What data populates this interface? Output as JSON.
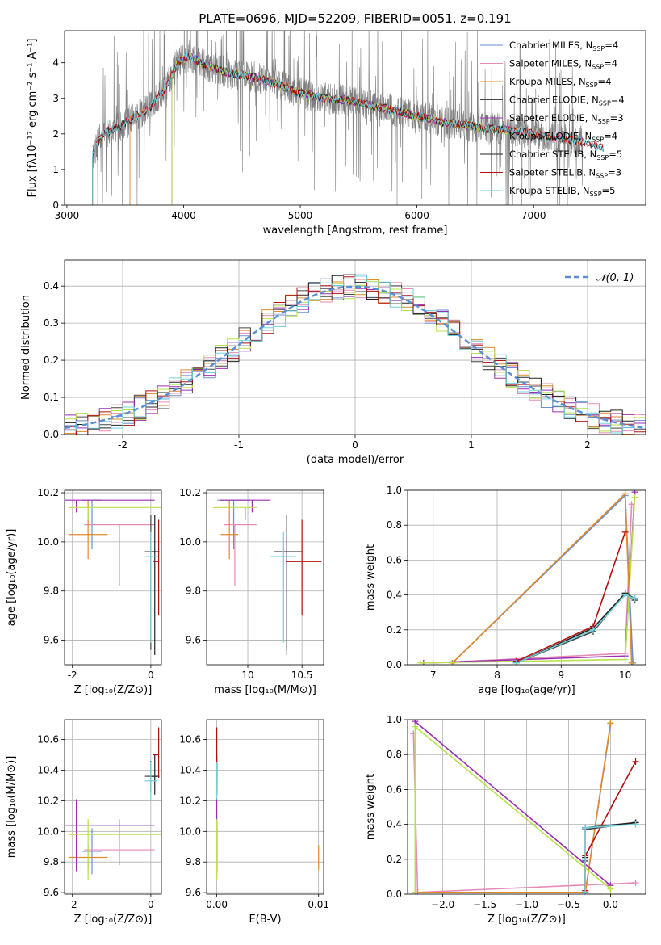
{
  "figure": {
    "title": "PLATE=0696, MJD=52209, FIBERID=0051, z=0.191"
  },
  "chart_data": [
    {
      "id": "spectrum",
      "type": "line",
      "xlabel": "wavelength [Angstrom, rest frame]",
      "ylabel": "Flux [fλ10⁻¹⁷ erg cm⁻² s⁻¹ A⁻¹]",
      "xlim": [
        2980,
        7960
      ],
      "ylim": [
        0,
        4.9
      ],
      "xticks": [
        3000,
        4000,
        5000,
        6000,
        7000
      ],
      "yticks": [
        0,
        1,
        2,
        3,
        4
      ],
      "grid": false,
      "legend_position": "top-right",
      "data_noise_range": [
        3220,
        7420
      ],
      "continuum": [
        {
          "x": 3220,
          "y": 1.4
        },
        {
          "x": 3300,
          "y": 2.0
        },
        {
          "x": 3450,
          "y": 2.2
        },
        {
          "x": 3550,
          "y": 2.4
        },
        {
          "x": 3700,
          "y": 2.7
        },
        {
          "x": 3850,
          "y": 3.3
        },
        {
          "x": 3950,
          "y": 4.0
        },
        {
          "x": 4050,
          "y": 4.2
        },
        {
          "x": 4200,
          "y": 3.9
        },
        {
          "x": 4400,
          "y": 3.7
        },
        {
          "x": 4600,
          "y": 3.6
        },
        {
          "x": 4800,
          "y": 3.4
        },
        {
          "x": 5000,
          "y": 3.15
        },
        {
          "x": 5200,
          "y": 3.0
        },
        {
          "x": 5400,
          "y": 2.95
        },
        {
          "x": 5600,
          "y": 2.8
        },
        {
          "x": 5800,
          "y": 2.65
        },
        {
          "x": 6000,
          "y": 2.5
        },
        {
          "x": 6200,
          "y": 2.35
        },
        {
          "x": 6400,
          "y": 2.25
        },
        {
          "x": 6600,
          "y": 2.15
        },
        {
          "x": 6800,
          "y": 2.1
        },
        {
          "x": 7000,
          "y": 2.0
        },
        {
          "x": 7200,
          "y": 1.9
        },
        {
          "x": 7400,
          "y": 1.8
        },
        {
          "x": 7600,
          "y": 1.6
        }
      ],
      "series": [
        {
          "name": "Chabrier MILES, N_SSP=4",
          "label_prefix": "Chabrier MILES, N",
          "label_sub": "SSP",
          "label_suffix": "=4",
          "color": "#6a8fd1",
          "start": 3540,
          "end": 7400
        },
        {
          "name": "Salpeter MILES, N_SSP=4",
          "label_prefix": "Salpeter MILES, N",
          "label_sub": "SSP",
          "label_suffix": "=4",
          "color": "#e58bb8",
          "start": 3540,
          "end": 7400
        },
        {
          "name": "Kroupa MILES, N_SSP=4",
          "label_prefix": "Kroupa MILES, N",
          "label_sub": "SSP",
          "label_suffix": "=4",
          "color": "#e08a2c",
          "start": 3540,
          "end": 7400
        },
        {
          "name": "Chabrier ELODIE, N_SSP=4",
          "label_prefix": "Chabrier ELODIE, N",
          "label_sub": "SSP",
          "label_suffix": "=4",
          "color": "#444444",
          "start": 3900,
          "end": 6800
        },
        {
          "name": "Salpeter ELODIE, N_SSP=3",
          "label_prefix": "Salpeter ELODIE, N",
          "label_sub": "SSP",
          "label_suffix": "=3",
          "color": "#9a2fb0",
          "start": 3900,
          "end": 6800
        },
        {
          "name": "Kroupa ELODIE, N_SSP=4",
          "label_prefix": "Kroupa ELODIE, N",
          "label_sub": "SSP",
          "label_suffix": "=4",
          "color": "#b8e04a",
          "start": 3900,
          "end": 6800
        },
        {
          "name": "Chabrier STELIB, N_SSP=5",
          "label_prefix": "Chabrier STELIB, N",
          "label_sub": "SSP",
          "label_suffix": "=5",
          "color": "#222222",
          "start": 3220,
          "end": 7600
        },
        {
          "name": "Salpeter STELIB, N_SSP=3",
          "label_prefix": "Salpeter STELIB, N",
          "label_sub": "SSP",
          "label_suffix": "=3",
          "color": "#b01010",
          "start": 3220,
          "end": 7600
        },
        {
          "name": "Kroupa STELIB, N_SSP=5",
          "label_prefix": "Kroupa STELIB, N",
          "label_sub": "SSP",
          "label_suffix": "=5",
          "color": "#6fd0dc",
          "start": 3220,
          "end": 7600
        }
      ]
    },
    {
      "id": "residuals",
      "type": "histogram",
      "xlabel": "(data-model)/error",
      "ylabel": "Normed distribution",
      "xlim": [
        -2.5,
        2.5
      ],
      "ylim": [
        0,
        0.47
      ],
      "xticks": [
        -2,
        -1,
        0,
        1,
        2
      ],
      "yticks": [
        0.0,
        0.1,
        0.2,
        0.3,
        0.4
      ],
      "grid": true,
      "legend_position": "top-right",
      "reference_curve": {
        "label": "𝒩(0, 1)",
        "color": "#5a8fd6",
        "style": "dashed"
      },
      "bin_width": 0.1,
      "bins_from": -2.5
    },
    {
      "id": "age_vs_Z",
      "type": "errorbar",
      "xlabel": "Z [log₁₀(Z/Z⊙)]",
      "ylabel": "age  [log₁₀(age/yr)]",
      "xlim": [
        -2.2,
        0.27
      ],
      "ylim": [
        9.5,
        10.21
      ],
      "xticks": [
        -2,
        0
      ],
      "yticks": [
        9.6,
        9.8,
        10.0,
        10.2
      ],
      "grid": true
    },
    {
      "id": "age_vs_mass",
      "type": "errorbar",
      "xlabel": "mass [log₁₀(M/M⊙)]",
      "ylabel": "",
      "xlim": [
        9.62,
        10.7
      ],
      "ylim": [
        9.5,
        10.21
      ],
      "xticks": [
        10.0,
        10.5
      ],
      "yticks": [
        9.6,
        9.8,
        10.0,
        10.2
      ],
      "grid": true
    },
    {
      "id": "massweight_vs_age",
      "type": "line",
      "xlabel": "age  [log₁₀(age/yr)]",
      "ylabel": "mass weight",
      "xlim": [
        6.6,
        10.32
      ],
      "ylim": [
        0,
        1.0
      ],
      "xticks": [
        7,
        8,
        9,
        10
      ],
      "yticks": [
        0.0,
        0.2,
        0.4,
        0.6,
        0.8,
        1.0
      ],
      "grid": true
    },
    {
      "id": "mass_vs_Z",
      "type": "errorbar",
      "xlabel": "Z [log₁₀(Z/Z⊙)]",
      "ylabel": "mass [log₁₀(M/M⊙)]",
      "xlim": [
        -2.2,
        0.27
      ],
      "ylim": [
        9.59,
        10.73
      ],
      "xticks": [
        -2,
        0
      ],
      "yticks": [
        9.6,
        9.8,
        10.0,
        10.2,
        10.4,
        10.6
      ],
      "grid": true
    },
    {
      "id": "mass_vs_ebv",
      "type": "errorbar",
      "xlabel": "E(B-V)",
      "ylabel": "",
      "xlim": [
        -0.001,
        0.0105
      ],
      "ylim": [
        9.59,
        10.73
      ],
      "xticks": [
        0.0,
        0.01
      ],
      "xtick_labels": [
        "0.00",
        "0.01"
      ],
      "yticks": [
        9.6,
        9.8,
        10.0,
        10.2,
        10.4,
        10.6
      ],
      "grid": true
    },
    {
      "id": "massweight_vs_Z",
      "type": "line",
      "xlabel": "Z [log₁₀(Z/Z⊙)]",
      "ylabel": "mass weight",
      "xlim": [
        -2.42,
        0.42
      ],
      "ylim": [
        0,
        1.0
      ],
      "xticks": [
        -2.0,
        -1.5,
        -1.0,
        -0.5,
        0.0
      ],
      "yticks": [
        0.0,
        0.2,
        0.4,
        0.6,
        0.8,
        1.0
      ],
      "grid": true
    }
  ],
  "fits": [
    {
      "color": "#6a8fd1",
      "hist_seed": 1,
      "age": 10.17,
      "age_err": [
        0.2,
        0.0
      ],
      "Z": -1.5,
      "Z_err": [
        0.25,
        0.25
      ],
      "mass": 9.87,
      "mass_err": [
        0.15,
        0.15
      ],
      "ebv": 0.0,
      "sfh": [
        {
          "age": 7.3,
          "w": 0.01,
          "Z": -2.3
        },
        {
          "age": 10.0,
          "w": 0.97,
          "Z": 0.0
        },
        {
          "age": 10.12,
          "w": 0.01,
          "Z": -0.3
        }
      ]
    },
    {
      "color": "#e58bb8",
      "hist_seed": 2,
      "age": 10.07,
      "age_err": [
        0.25,
        0.0
      ],
      "Z": -0.8,
      "Z_err": [
        0.9,
        0.9
      ],
      "mass": 9.88,
      "mass_err": [
        0.1,
        0.2
      ],
      "ebv": 0.0,
      "sfh": [
        {
          "age": 7.0,
          "w": 0.01,
          "Z": -2.3
        },
        {
          "age": 10.0,
          "w": 0.065,
          "Z": 0.3
        },
        {
          "age": 10.1,
          "w": 0.92,
          "Z": -2.35
        }
      ]
    },
    {
      "color": "#e08a2c",
      "hist_seed": 3,
      "age": 10.03,
      "age_err": [
        0.1,
        0.14
      ],
      "Z": -1.6,
      "Z_err": [
        0.5,
        0.5
      ],
      "mass": 9.83,
      "mass_err": [
        0.08,
        0.08
      ],
      "ebv": 0.01,
      "sfh": [
        {
          "age": 7.3,
          "w": 0.01,
          "Z": -2.3
        },
        {
          "age": 10.0,
          "w": 0.98,
          "Z": 0.0
        },
        {
          "age": 10.1,
          "w": 0.01,
          "Z": -0.3
        }
      ]
    },
    {
      "color": "#444444",
      "hist_seed": 4,
      "age": 9.96,
      "age_err": [
        0.4,
        0.15
      ],
      "Z": 0.0,
      "Z_err": [
        0.15,
        0.15
      ],
      "mass": 10.36,
      "mass_err": [
        0.1,
        0.1
      ],
      "ebv": 0.0,
      "sfh": [
        {
          "age": 8.3,
          "w": 0.01,
          "Z": -0.3
        },
        {
          "age": 9.5,
          "w": 0.19,
          "Z": -0.3
        },
        {
          "age": 10.0,
          "w": 0.41,
          "Z": 0.3
        },
        {
          "age": 10.15,
          "w": 0.37,
          "Z": -0.3
        }
      ]
    },
    {
      "color": "#9a2fb0",
      "hist_seed": 5,
      "age": 10.17,
      "age_err": [
        0.05,
        0.0
      ],
      "Z": -1.9,
      "Z_err": [
        0.35,
        2.0
      ],
      "mass": 10.04,
      "mass_err": [
        0.3,
        0.17
      ],
      "ebv": 0.0,
      "sfh": [
        {
          "age": 6.85,
          "w": 0.01,
          "Z": -2.33
        },
        {
          "age": 10.0,
          "w": 0.05,
          "Z": 0.0
        },
        {
          "age": 10.15,
          "w": 0.99,
          "Z": -2.33
        }
      ]
    },
    {
      "color": "#b8e04a",
      "hist_seed": 6,
      "age": 10.14,
      "age_err": [
        0.05,
        0.0
      ],
      "Z": -1.6,
      "Z_err": [
        0.5,
        2.0
      ],
      "mass": 9.98,
      "mass_err": [
        0.3,
        0.1
      ],
      "ebv": 0.0,
      "sfh": [
        {
          "age": 6.8,
          "w": 0.01,
          "Z": -2.33
        },
        {
          "age": 10.0,
          "w": 0.03,
          "Z": 0.0
        },
        {
          "age": 10.15,
          "w": 0.96,
          "Z": -2.33
        }
      ]
    },
    {
      "color": "#222222",
      "hist_seed": 7,
      "age": 9.96,
      "age_err": [
        0.42,
        0.15
      ],
      "Z": 0.1,
      "Z_err": [
        0.12,
        0.12
      ],
      "mass": 10.36,
      "mass_err": [
        0.12,
        0.14
      ],
      "ebv": 0.0,
      "sfh": [
        {
          "age": 8.3,
          "w": 0.01,
          "Z": -0.3
        },
        {
          "age": 9.5,
          "w": 0.21,
          "Z": -0.3
        },
        {
          "age": 10.0,
          "w": 0.41,
          "Z": 0.3
        },
        {
          "age": 10.15,
          "w": 0.38,
          "Z": -0.3
        }
      ]
    },
    {
      "color": "#b01010",
      "hist_seed": 8,
      "age": 9.92,
      "age_err": [
        0.22,
        0.17
      ],
      "Z": 0.2,
      "Z_err": [
        0.15,
        0.0
      ],
      "mass": 10.5,
      "mass_err": [
        0.15,
        0.18
      ],
      "ebv": 0.0,
      "sfh": [
        {
          "age": 8.3,
          "w": 0.02,
          "Z": -0.3
        },
        {
          "age": 9.5,
          "w": 0.22,
          "Z": -0.3
        },
        {
          "age": 10.0,
          "w": 0.76,
          "Z": 0.3
        }
      ]
    },
    {
      "color": "#6fd0dc",
      "hist_seed": 9,
      "age": 9.94,
      "age_err": [
        0.35,
        0.1
      ],
      "Z": 0.0,
      "Z_err": [
        0.15,
        0.15
      ],
      "mass": 10.33,
      "mass_err": [
        0.12,
        0.12
      ],
      "ebv": 0.0,
      "sfh": [
        {
          "age": 8.3,
          "w": 0.01,
          "Z": -0.3
        },
        {
          "age": 9.5,
          "w": 0.2,
          "Z": -0.3
        },
        {
          "age": 10.0,
          "w": 0.4,
          "Z": 0.3
        },
        {
          "age": 10.15,
          "w": 0.38,
          "Z": -0.3
        }
      ]
    }
  ]
}
